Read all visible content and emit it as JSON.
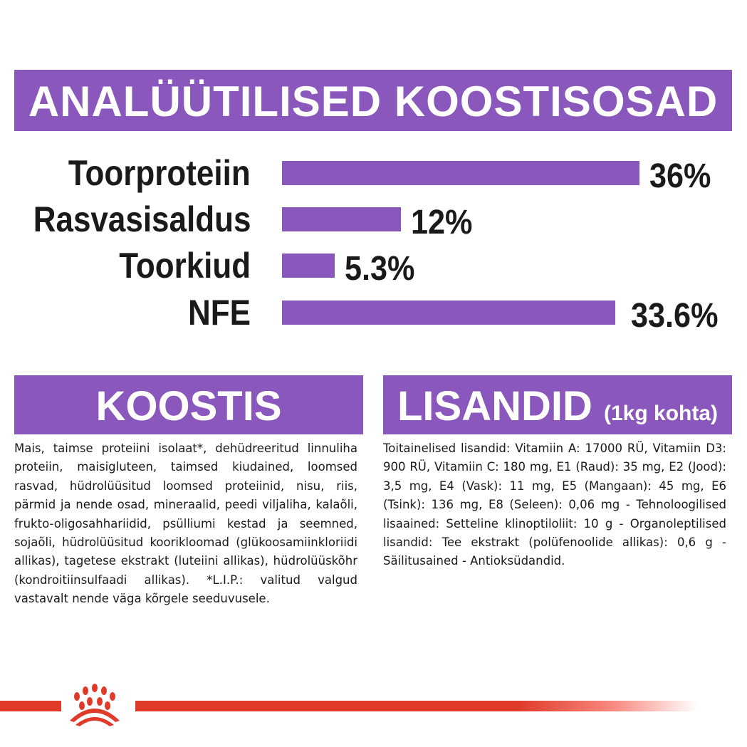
{
  "header": {
    "title": "ANALÜÜTILISED KOOSTISOSAD"
  },
  "chart_data": {
    "type": "bar",
    "orientation": "horizontal",
    "categories": [
      "Toorproteiin",
      "Rasvasisaldus",
      "Toorkiud",
      "NFE"
    ],
    "values": [
      36,
      12,
      5.3,
      33.6
    ],
    "labels": [
      "36%",
      "12%",
      "5.3%",
      "33.6%"
    ],
    "unit": "%",
    "color": "#8a57bc"
  },
  "koostis": {
    "title": "KOOSTIS",
    "text": "Mais, taimse proteiini isolaat*, dehüdreeritud linnuliha proteiin, maisigluteen, taimsed kiudained, loomsed rasvad, hüdrolüüsitud loomsed proteiinid, nisu, riis, pärmid ja nende osad, mineraalid, peedi viljaliha, kalaõli, frukto-oligosahhariidid, psülliumi kestad ja seemned, sojaõli, hüdrolüüsitud koorikloomad (glükoosamiinkloriidi allikas), tagetese ekstrakt (luteiini allikas), hüdrolüüskõhr (kondroitiinsulfaadi allikas). *L.I.P.: valitud valgud vastavalt nende väga kõrgele seeduvusele."
  },
  "lisandid": {
    "title": "LISANDID",
    "subtitle": "(1kg kohta)",
    "text": "Toitainelised lisandid: Vitamiin A: 17000 RÜ, Vitamiin D3: 900 RÜ, Vitamiin C: 180 mg, E1 (Raud): 35 mg, E2 (Jood): 3,5 mg, E4 (Vask): 11 mg, E5 (Mangaan): 45 mg, E6 (Tsink): 136 mg, E8 (Seleen): 0,06 mg - Tehnoloogilised lisaained: Setteline klinoptiloliit: 10 g - Organoleptilised lisandid: Tee ekstrakt (polüfenoolide allikas): 0,6 g - Säilitusained - Antioksüdandid."
  },
  "colors": {
    "purple": "#8a57bc",
    "red": "#e03a2a"
  }
}
